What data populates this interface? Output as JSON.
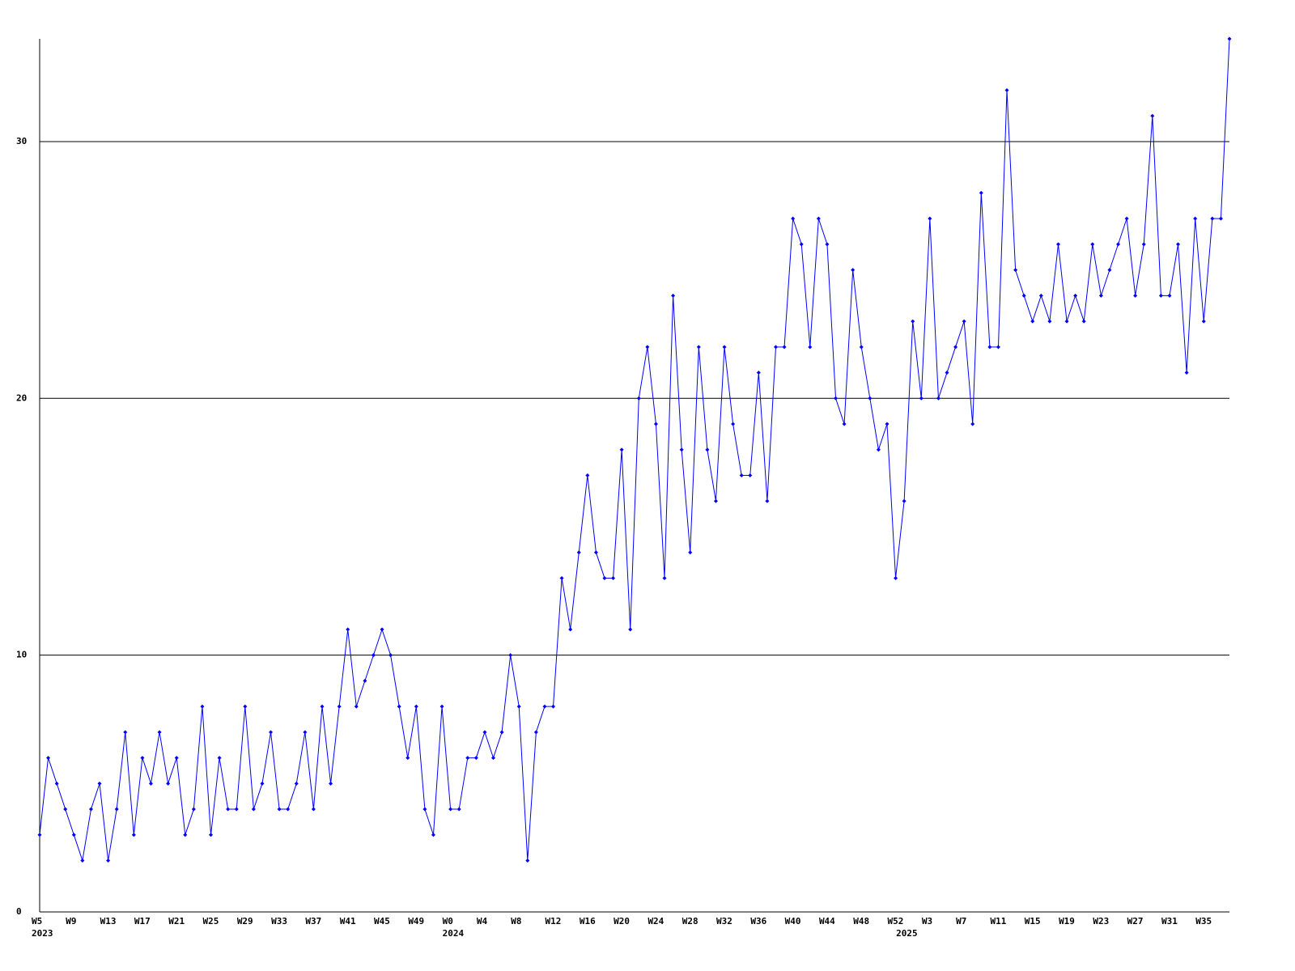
{
  "chart_data": {
    "type": "line",
    "color": "#0000ff",
    "grid": true,
    "ylim": [
      0,
      34
    ],
    "yticks": [
      0,
      10,
      20,
      30
    ],
    "categories": [
      "W5",
      null,
      null,
      null,
      "W9",
      null,
      null,
      null,
      "W13",
      null,
      null,
      null,
      "W17",
      null,
      null,
      null,
      "W21",
      null,
      null,
      null,
      "W25",
      null,
      null,
      null,
      "W29",
      null,
      null,
      null,
      "W33",
      null,
      null,
      null,
      "W37",
      null,
      null,
      null,
      "W41",
      null,
      null,
      null,
      "W45",
      null,
      null,
      null,
      "W49",
      null,
      null,
      null,
      "W0",
      null,
      null,
      null,
      "W4",
      null,
      null,
      null,
      "W8",
      null,
      null,
      null,
      "W12",
      null,
      null,
      null,
      "W16",
      null,
      null,
      null,
      "W20",
      null,
      null,
      null,
      "W24",
      null,
      null,
      null,
      "W28",
      null,
      null,
      null,
      "W32",
      null,
      null,
      null,
      "W36",
      null,
      null,
      null,
      "W40",
      null,
      null,
      null,
      "W44",
      null,
      null,
      null,
      "W48",
      null,
      null,
      null,
      "W52",
      null,
      null,
      null,
      "W3",
      null,
      null,
      null,
      "W7",
      null,
      null,
      null,
      "W11",
      null,
      null,
      null,
      "W15",
      null,
      null,
      null,
      "W19",
      null,
      null,
      null,
      "W23",
      null,
      null,
      null,
      "W27",
      null,
      null,
      null,
      "W31",
      null,
      null,
      null,
      "W35",
      null,
      null,
      null
    ],
    "year_categories": [
      "2023",
      null,
      null,
      null,
      null,
      null,
      null,
      null,
      null,
      null,
      null,
      null,
      null,
      null,
      null,
      null,
      null,
      null,
      null,
      null,
      null,
      null,
      null,
      null,
      null,
      null,
      null,
      null,
      null,
      null,
      null,
      null,
      null,
      null,
      null,
      null,
      null,
      null,
      null,
      null,
      null,
      null,
      null,
      null,
      null,
      null,
      null,
      null,
      "2024",
      null,
      null,
      null,
      null,
      null,
      null,
      null,
      null,
      null,
      null,
      null,
      null,
      null,
      null,
      null,
      null,
      null,
      null,
      null,
      null,
      null,
      null,
      null,
      null,
      null,
      null,
      null,
      null,
      null,
      null,
      null,
      null,
      null,
      null,
      null,
      null,
      null,
      null,
      null,
      null,
      null,
      null,
      null,
      null,
      null,
      null,
      null,
      null,
      null,
      null,
      null,
      null,
      "2025",
      null,
      null,
      null,
      null,
      null,
      null,
      null,
      null,
      null,
      null,
      null,
      null,
      null,
      null,
      null,
      null,
      null,
      null,
      null,
      null,
      null,
      null,
      null,
      null,
      null,
      null,
      null,
      null,
      null,
      null,
      null,
      null,
      null,
      null,
      null,
      null,
      null,
      null
    ],
    "values": [
      3,
      6,
      5,
      4,
      3,
      2,
      4,
      5,
      2,
      4,
      7,
      3,
      6,
      5,
      7,
      5,
      6,
      3,
      4,
      8,
      3,
      6,
      4,
      4,
      8,
      4,
      5,
      7,
      4,
      4,
      5,
      7,
      4,
      8,
      5,
      8,
      11,
      8,
      9,
      10,
      11,
      10,
      8,
      6,
      8,
      4,
      3,
      8,
      4,
      4,
      6,
      6,
      7,
      6,
      7,
      10,
      8,
      2,
      7,
      8,
      8,
      13,
      11,
      14,
      17,
      14,
      13,
      13,
      18,
      11,
      20,
      22,
      19,
      13,
      24,
      18,
      14,
      22,
      18,
      16,
      22,
      19,
      17,
      17,
      21,
      16,
      22,
      22,
      27,
      26,
      22,
      27,
      26,
      20,
      19,
      25,
      22,
      20,
      18,
      19,
      13,
      16,
      23,
      20,
      27,
      20,
      21,
      22,
      23,
      19,
      28,
      22,
      22,
      32,
      25,
      24,
      23,
      24,
      23,
      26,
      23,
      24,
      23,
      26,
      24,
      25,
      26,
      27,
      24,
      26,
      31,
      24,
      24,
      26,
      21,
      27,
      23,
      27,
      27,
      34
    ]
  }
}
